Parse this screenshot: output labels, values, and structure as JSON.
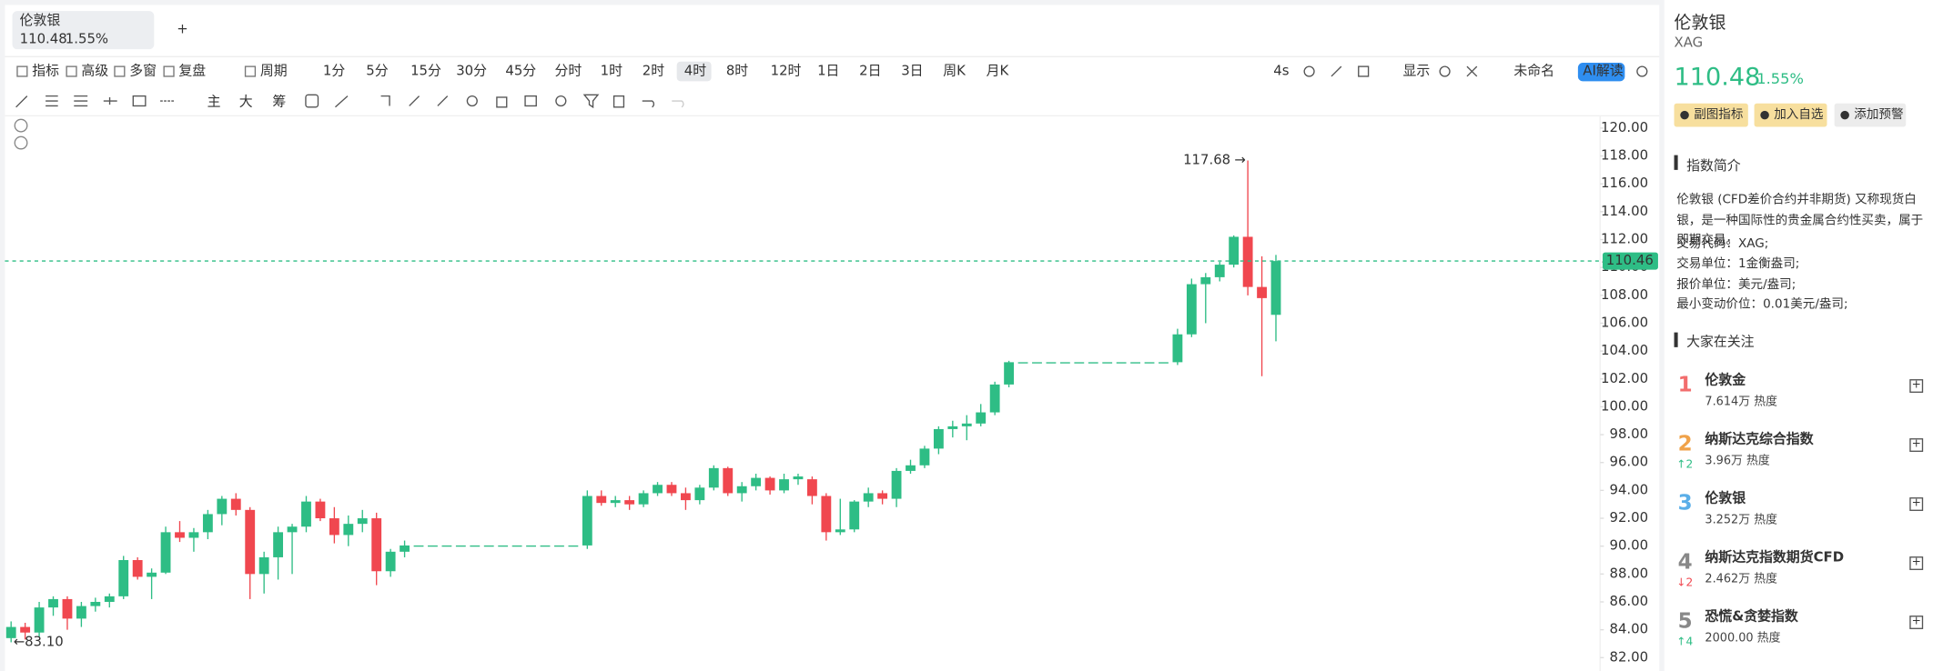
{
  "tab": {
    "name": "伦敦银",
    "price": "110.48",
    "change": "1.55%"
  },
  "toolbar": {
    "items": [
      "指标",
      "高级",
      "多窗",
      "复盘",
      "周期"
    ],
    "periods": [
      "1分",
      "5分",
      "15分",
      "30分",
      "45分",
      "分时",
      "1时",
      "2时",
      "4时",
      "8时",
      "12时",
      "1日",
      "2日",
      "3日",
      "周K",
      "月K"
    ],
    "selected_period": "4时",
    "disabled_periods": [
      "分时"
    ],
    "right": [
      "4s",
      "显示",
      "未命名",
      "AI解读"
    ]
  },
  "drawing_tools": [
    "主",
    "大",
    "筹"
  ],
  "chart": {
    "type": "candlestick",
    "up_color": "#2ebd85",
    "down_color": "#f0474f",
    "ylim": [
      81.04,
      120.8
    ],
    "yticks": [
      {
        "value": 82,
        "label": "82.00"
      },
      {
        "value": 84,
        "label": "84.00"
      },
      {
        "value": 86,
        "label": "86.00"
      },
      {
        "value": 88,
        "label": "88.00"
      },
      {
        "value": 90,
        "label": "90.00"
      },
      {
        "value": 92,
        "label": "92.00"
      },
      {
        "value": 94,
        "label": "94.00"
      },
      {
        "value": 96,
        "label": "96.00"
      },
      {
        "value": 98,
        "label": "98.00"
      },
      {
        "value": 100,
        "label": "100.00"
      },
      {
        "value": 102,
        "label": "102.00"
      },
      {
        "value": 104,
        "label": "104.00"
      },
      {
        "value": 106,
        "label": "106.00"
      },
      {
        "value": 108,
        "label": "108.00"
      },
      {
        "value": 110,
        "label": "110.00"
      },
      {
        "value": 112,
        "label": "112.00"
      },
      {
        "value": 114,
        "label": "114.00"
      },
      {
        "value": 116,
        "label": "116.00"
      },
      {
        "value": 118,
        "label": "118.00"
      },
      {
        "value": 120,
        "label": "120.00"
      }
    ],
    "last_price": {
      "value": 110.46,
      "label": "110.46"
    },
    "high_label": {
      "value": 117.68,
      "label": "117.68"
    },
    "low_label": {
      "value": 83.1,
      "label": "83.10"
    },
    "candles": [
      [
        83.4,
        84.6,
        83.1,
        84.2
      ],
      [
        84.2,
        84.5,
        83.3,
        83.8
      ],
      [
        83.8,
        86.0,
        83.5,
        85.6
      ],
      [
        85.6,
        86.4,
        85.0,
        86.2
      ],
      [
        86.2,
        86.4,
        84.0,
        84.8
      ],
      [
        84.8,
        86.0,
        84.2,
        85.7
      ],
      [
        85.7,
        86.3,
        85.3,
        86.0
      ],
      [
        86.0,
        86.6,
        85.6,
        86.4
      ],
      [
        86.4,
        89.3,
        86.2,
        89.0
      ],
      [
        89.0,
        89.2,
        87.6,
        87.8
      ],
      [
        87.8,
        88.4,
        86.2,
        88.1
      ],
      [
        88.1,
        91.4,
        88.0,
        91.0
      ],
      [
        91.0,
        91.8,
        90.3,
        90.6
      ],
      [
        90.6,
        91.3,
        89.6,
        91.0
      ],
      [
        91.0,
        92.6,
        90.5,
        92.3
      ],
      [
        92.3,
        93.6,
        91.5,
        93.4
      ],
      [
        93.4,
        93.8,
        92.2,
        92.6
      ],
      [
        92.6,
        92.8,
        86.2,
        88.0
      ],
      [
        88.0,
        89.6,
        86.6,
        89.2
      ],
      [
        89.2,
        91.4,
        87.6,
        91.0
      ],
      [
        91.0,
        91.6,
        88.0,
        91.4
      ],
      [
        91.4,
        93.6,
        91.0,
        93.2
      ],
      [
        93.2,
        93.4,
        91.8,
        92.0
      ],
      [
        92.0,
        92.8,
        90.2,
        90.8
      ],
      [
        90.8,
        92.2,
        90.0,
        91.6
      ],
      [
        91.6,
        92.6,
        91.0,
        92.0
      ],
      [
        92.0,
        92.4,
        87.2,
        88.2
      ],
      [
        88.2,
        89.8,
        87.8,
        89.6
      ],
      [
        89.6,
        90.4,
        89.2,
        90.05
      ],
      [
        90.05,
        90.05,
        90.05,
        90.05
      ],
      [
        90.05,
        90.05,
        90.05,
        90.05
      ],
      [
        90.05,
        90.05,
        90.05,
        90.05
      ],
      [
        90.05,
        90.05,
        90.05,
        90.05
      ],
      [
        90.05,
        90.05,
        90.05,
        90.05
      ],
      [
        90.05,
        90.05,
        90.05,
        90.05
      ],
      [
        90.05,
        90.05,
        90.05,
        90.05
      ],
      [
        90.05,
        90.05,
        90.05,
        90.05
      ],
      [
        90.05,
        90.05,
        90.05,
        90.05
      ],
      [
        90.05,
        90.05,
        90.05,
        90.05
      ],
      [
        90.05,
        90.05,
        90.05,
        90.05
      ],
      [
        90.05,
        90.05,
        90.05,
        90.05
      ],
      [
        90.05,
        94.0,
        89.8,
        93.6
      ],
      [
        93.6,
        94.0,
        92.9,
        93.1
      ],
      [
        93.1,
        93.6,
        92.8,
        93.3
      ],
      [
        93.3,
        93.6,
        92.6,
        93.0
      ],
      [
        93.0,
        94.0,
        92.8,
        93.8
      ],
      [
        93.8,
        94.6,
        93.6,
        94.4
      ],
      [
        94.4,
        94.6,
        93.6,
        93.8
      ],
      [
        93.8,
        94.2,
        92.6,
        93.3
      ],
      [
        93.3,
        94.4,
        93.0,
        94.2
      ],
      [
        94.2,
        95.8,
        94.0,
        95.6
      ],
      [
        95.6,
        95.7,
        93.6,
        93.8
      ],
      [
        93.8,
        94.6,
        93.2,
        94.3
      ],
      [
        94.3,
        95.2,
        94.0,
        94.9
      ],
      [
        94.9,
        95.0,
        93.7,
        94.0
      ],
      [
        94.0,
        95.2,
        93.8,
        94.8
      ],
      [
        94.8,
        95.2,
        94.4,
        95.0
      ],
      [
        94.8,
        95.0,
        93.0,
        93.6
      ],
      [
        93.6,
        93.8,
        90.4,
        91.0
      ],
      [
        91.0,
        93.4,
        90.8,
        91.2
      ],
      [
        91.2,
        93.3,
        91.0,
        93.2
      ],
      [
        93.2,
        94.2,
        92.8,
        93.8
      ],
      [
        93.8,
        94.0,
        93.0,
        93.4
      ],
      [
        93.4,
        95.6,
        92.8,
        95.4
      ],
      [
        95.4,
        96.2,
        95.2,
        95.8
      ],
      [
        95.8,
        97.2,
        95.6,
        97.0
      ],
      [
        97.0,
        98.6,
        96.6,
        98.4
      ],
      [
        98.4,
        99.0,
        97.8,
        98.6
      ],
      [
        98.6,
        99.4,
        97.6,
        98.8
      ],
      [
        98.8,
        100.2,
        98.6,
        99.6
      ],
      [
        99.6,
        101.8,
        99.4,
        101.6
      ],
      [
        101.6,
        103.3,
        101.4,
        103.2
      ],
      [
        103.2,
        103.2,
        103.2,
        103.2
      ],
      [
        103.2,
        103.2,
        103.2,
        103.2
      ],
      [
        103.2,
        103.2,
        103.2,
        103.2
      ],
      [
        103.2,
        103.2,
        103.2,
        103.2
      ],
      [
        103.2,
        103.2,
        103.2,
        103.2
      ],
      [
        103.2,
        103.2,
        103.2,
        103.2
      ],
      [
        103.2,
        103.2,
        103.2,
        103.2
      ],
      [
        103.2,
        103.2,
        103.2,
        103.2
      ],
      [
        103.2,
        103.2,
        103.2,
        103.2
      ],
      [
        103.2,
        103.2,
        103.2,
        103.2
      ],
      [
        103.2,
        103.2,
        103.2,
        103.2
      ],
      [
        103.2,
        105.6,
        103.0,
        105.2
      ],
      [
        105.2,
        109.2,
        105.0,
        108.8
      ],
      [
        108.8,
        109.6,
        106.0,
        109.3
      ],
      [
        109.3,
        110.4,
        109.0,
        110.2
      ],
      [
        110.2,
        112.3,
        110.0,
        112.2
      ],
      [
        112.2,
        117.68,
        108.0,
        108.6
      ],
      [
        108.6,
        110.8,
        102.2,
        107.8
      ],
      [
        106.6,
        110.9,
        104.7,
        110.46
      ]
    ]
  },
  "info": {
    "name": "伦敦银",
    "code": "XAG",
    "price": "110.48",
    "change": "1.55%",
    "buttons": [
      "副图指标",
      "加入自选",
      "添加预警"
    ],
    "intro_title": "指数简介",
    "intro": "伦敦银 (CFD差价合约并非期货) 又称现货白银，是一种国际性的贵金属合约性买卖，属于即期交易。",
    "details": [
      "交易代码：XAG;",
      "交易单位：1金衡盎司;",
      "报价单位：美元/盎司;",
      "最小变动价位：0.01美元/盎司;"
    ],
    "watch_title": "大家在关注",
    "watchlist": [
      {
        "rank": 1,
        "color": "#f26d6d",
        "name": "伦敦金",
        "heat": "7.614万 热度"
      },
      {
        "rank": 2,
        "color": "#f0a24a",
        "move": "↑2",
        "move_color": "#2ebd85",
        "name": "纳斯达克综合指数",
        "heat": "3.96万 热度"
      },
      {
        "rank": 3,
        "color": "#5aaee8",
        "name": "伦敦银",
        "heat": "3.252万 热度"
      },
      {
        "rank": 4,
        "color": "#888888",
        "move": "↓2",
        "move_color": "#f0474f",
        "name": "纳斯达克指数期货CFD",
        "heat": "2.462万 热度"
      },
      {
        "rank": 5,
        "color": "#888888",
        "move": "↑4",
        "move_color": "#2ebd85",
        "name": "恐慌&贪婪指数",
        "heat": "2000.00 热度"
      }
    ]
  }
}
